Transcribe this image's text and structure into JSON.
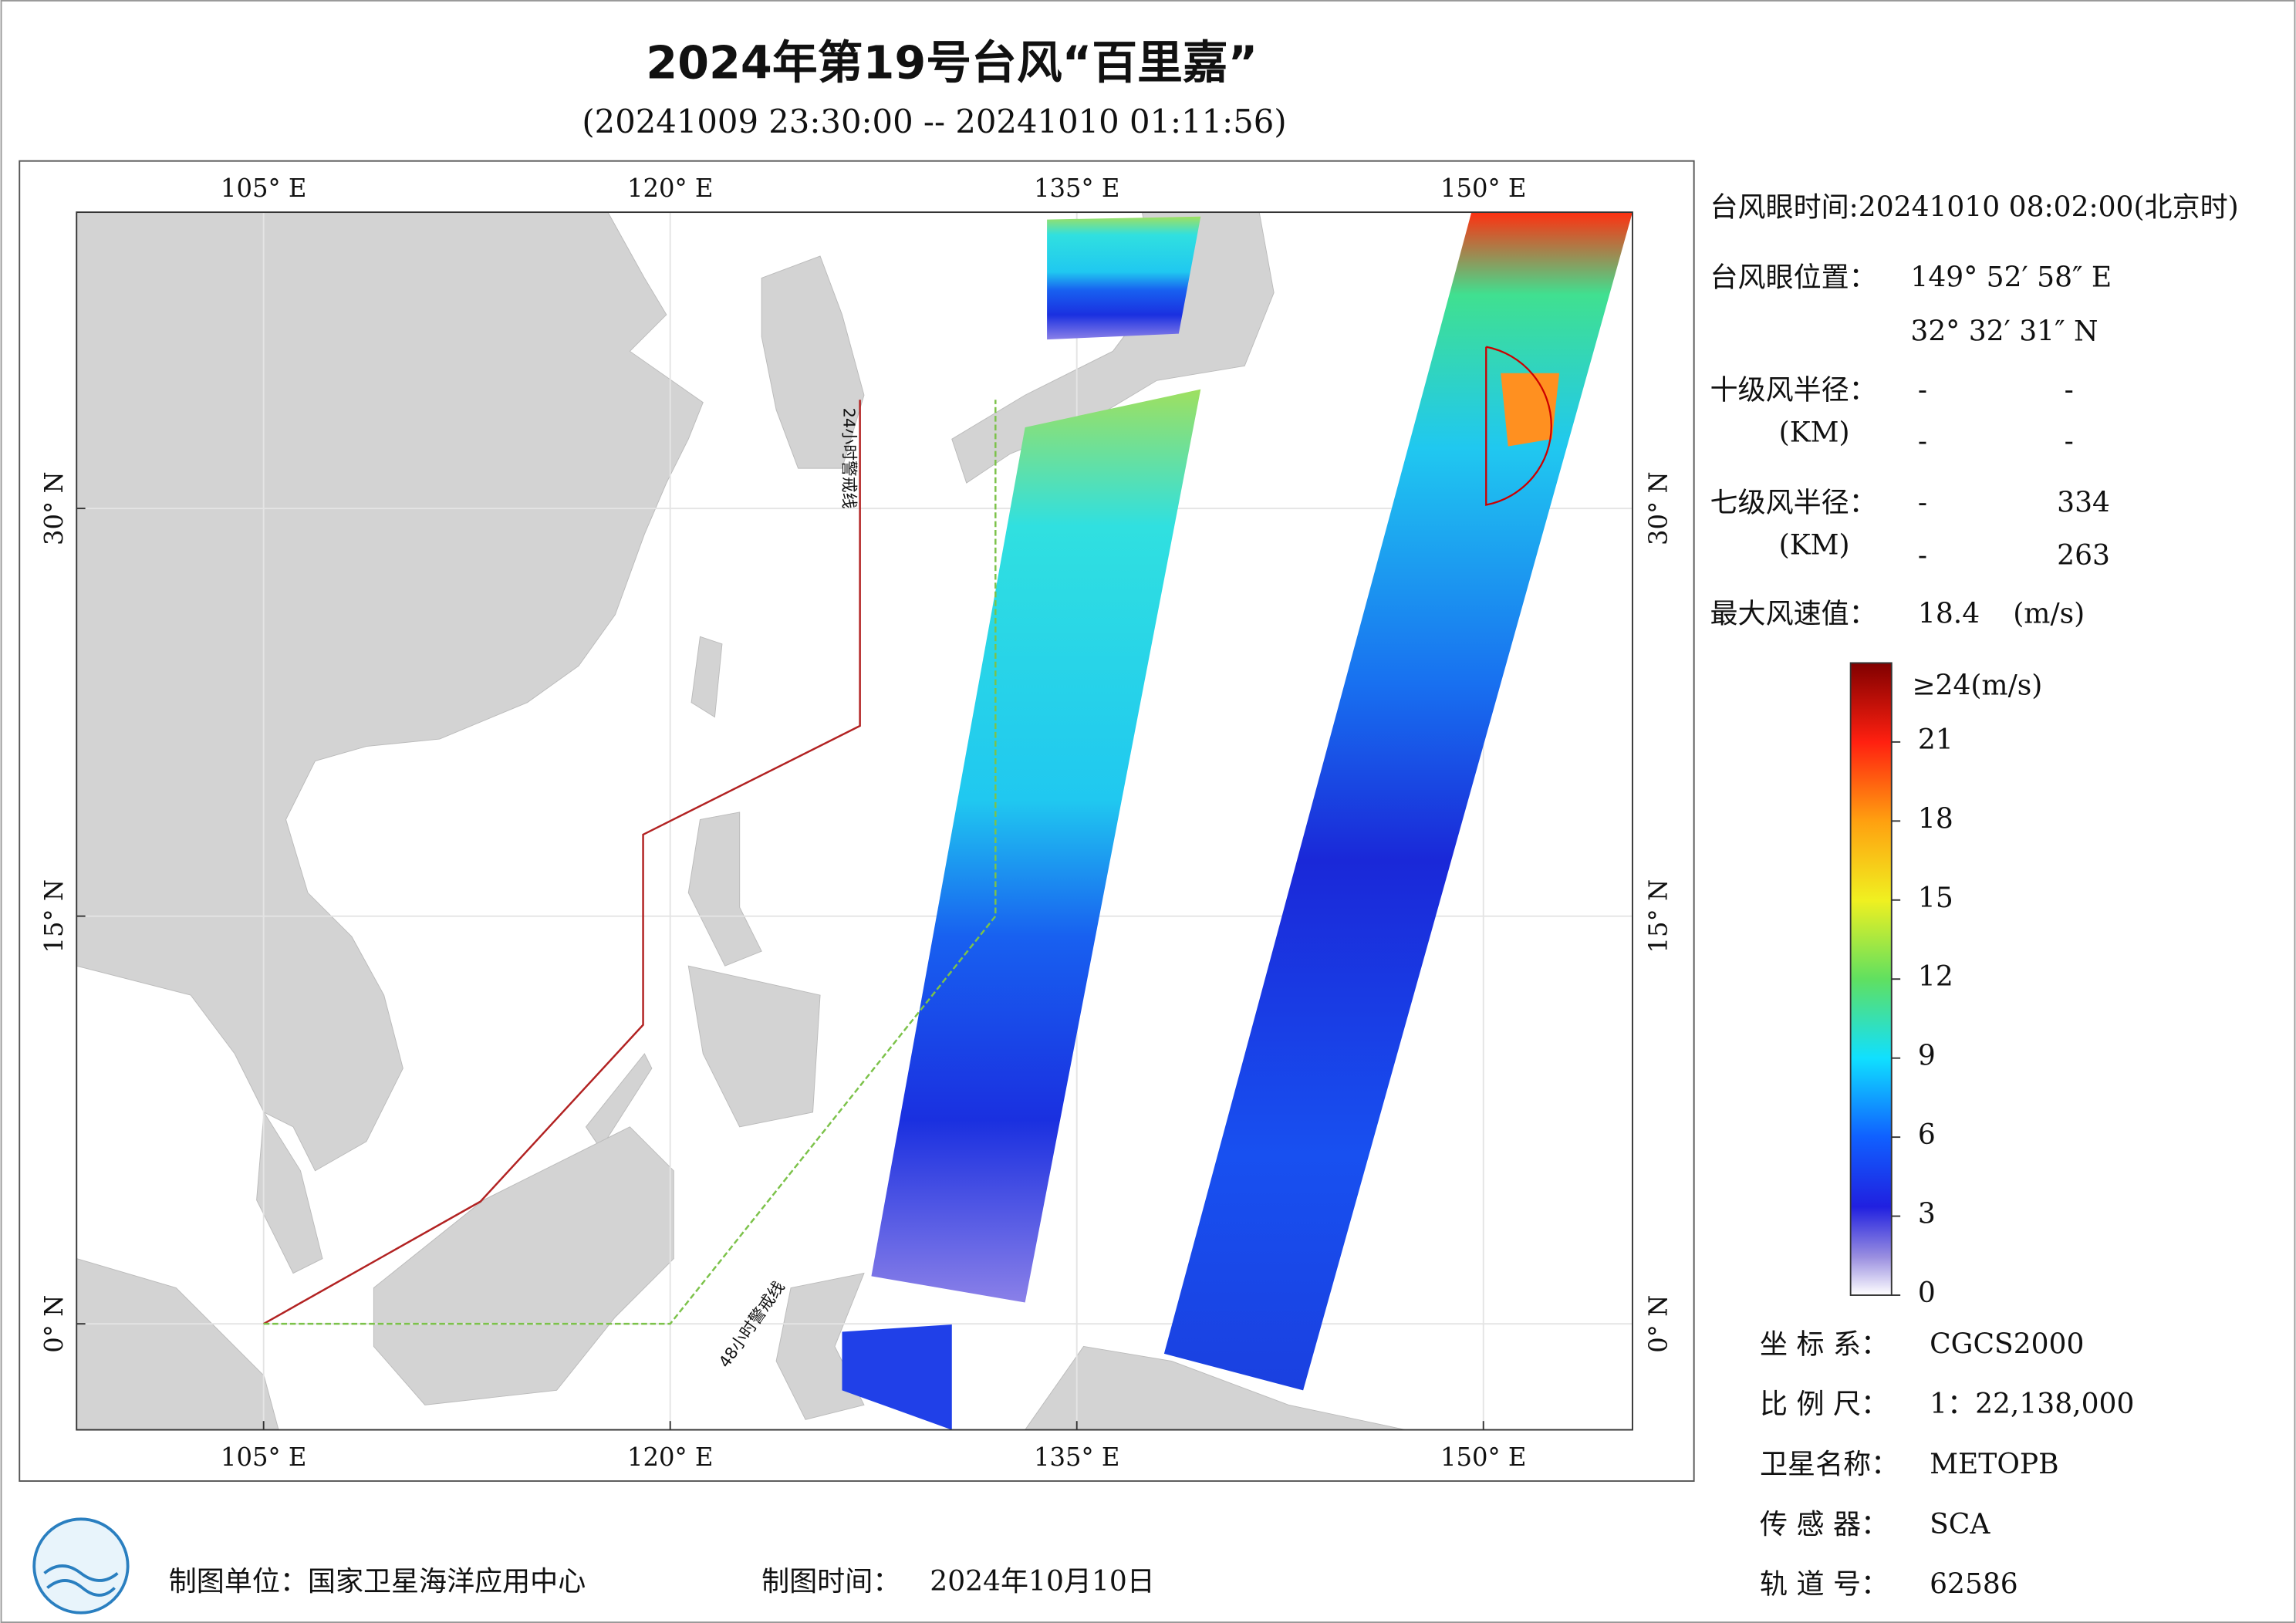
{
  "header": {
    "title": "2024年第19号台风“百里嘉”",
    "subtitle": "(20241009 23:30:00 -- 20241010 01:11:56)"
  },
  "map": {
    "xlim": [
      98.1,
      155.5
    ],
    "ylim": [
      -3.9,
      40.9
    ],
    "xticks": [
      {
        "value": 105,
        "label": "105° E"
      },
      {
        "value": 120,
        "label": "120° E"
      },
      {
        "value": 135,
        "label": "135° E"
      },
      {
        "value": 150,
        "label": "150° E"
      }
    ],
    "yticks": [
      {
        "value": 0,
        "label": "0° N"
      },
      {
        "value": 15,
        "label": "15° N"
      },
      {
        "value": 30,
        "label": "30° N"
      }
    ],
    "warning_lines": [
      {
        "label": "24小时警戒线",
        "color": "#b22222",
        "lon": [
          105,
          113,
          119,
          119,
          127,
          127
        ],
        "lat": [
          0,
          4.5,
          11,
          18,
          22,
          34
        ]
      },
      {
        "label": "48小时警戒线",
        "color": "#7cc24a",
        "lon": [
          105,
          120,
          132,
          132
        ],
        "lat": [
          0,
          0,
          15,
          34
        ]
      }
    ]
  },
  "info": {
    "eye_time": "台风眼时间:20241010 08:02:00(北京时)",
    "eye_position_label": "台风眼位置：",
    "eye_lon": "149° 52′ 58″ E",
    "eye_lat": "32° 32′ 31″ N",
    "r10_label": "十级风半径：",
    "r10_unit": "(KM)",
    "r10_values": [
      [
        "-",
        "-"
      ],
      [
        "-",
        "-"
      ]
    ],
    "r7_label": "七级风半径：",
    "r7_unit": "(KM)",
    "r7_values": [
      [
        "-",
        334
      ],
      [
        "-",
        263
      ]
    ],
    "max_wind_label": "最大风速值：",
    "max_wind": 18.4,
    "max_wind_unit": "(m/s)"
  },
  "colorbar": {
    "lim": [
      0,
      24
    ],
    "ticks": [
      0,
      3,
      6,
      9,
      12,
      15,
      18,
      21
    ],
    "max_label": "≥24(m/s)"
  },
  "meta": [
    [
      "坐 标 系：",
      "CGCS2000"
    ],
    [
      "比 例 尺：",
      "1：22,138,000"
    ],
    [
      "卫星名称：",
      "METOPB"
    ],
    [
      "传 感 器：",
      "SCA"
    ],
    [
      "轨 道 号：",
      62586
    ]
  ],
  "footer": {
    "unit": "制图单位：国家卫星海洋应用中心",
    "time_label": "制图时间：",
    "time": "2024年10月10日"
  }
}
